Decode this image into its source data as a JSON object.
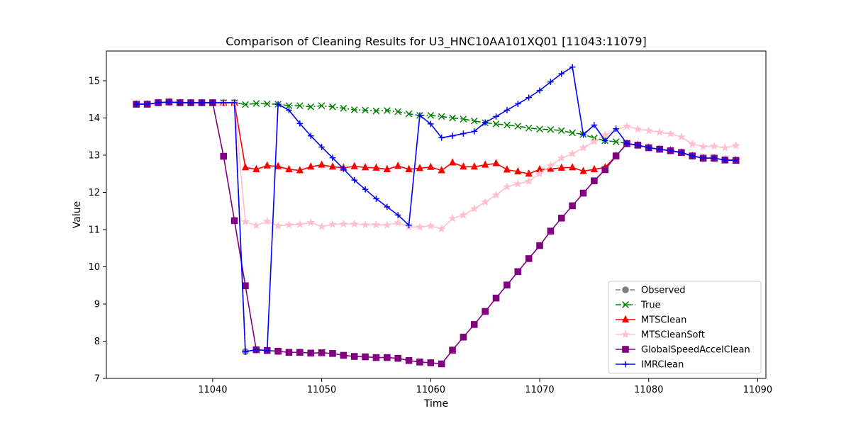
{
  "chart_data": {
    "type": "line",
    "title": "Comparison of Cleaning Results for U3_HNC10AA101XQ01 [11043:11079]",
    "xlabel": "Time",
    "ylabel": "Value",
    "xlim": [
      11030.25,
      11090.75
    ],
    "ylim": [
      7,
      15.8
    ],
    "xticks": [
      11040,
      11050,
      11060,
      11070,
      11080,
      11090
    ],
    "yticks": [
      7,
      8,
      9,
      10,
      11,
      12,
      13,
      14,
      15
    ],
    "grid": false,
    "legend_position": "lower-right",
    "series": [
      {
        "name": "Observed",
        "color": "#808080",
        "style": "dashed",
        "marker": "circle",
        "x": [
          11033,
          11034,
          11035,
          11036,
          11037,
          11038,
          11039,
          11040,
          11041,
          11042,
          11043
        ],
        "y": [
          14.37,
          14.37,
          14.41,
          14.43,
          14.41,
          14.41,
          14.41,
          14.41,
          14.41,
          14.41,
          7.72
        ]
      },
      {
        "name": "True",
        "color": "#008000",
        "style": "dashdot",
        "marker": "x",
        "x": [
          11033,
          11034,
          11035,
          11036,
          11037,
          11038,
          11039,
          11040,
          11041,
          11042,
          11043,
          11044,
          11045,
          11046,
          11047,
          11048,
          11049,
          11050,
          11051,
          11052,
          11053,
          11054,
          11055,
          11056,
          11057,
          11058,
          11059,
          11060,
          11061,
          11062,
          11063,
          11064,
          11065,
          11066,
          11067,
          11068,
          11069,
          11070,
          11071,
          11072,
          11073,
          11074,
          11075,
          11076,
          11077,
          11078
        ],
        "y": [
          14.37,
          14.37,
          14.41,
          14.43,
          14.41,
          14.41,
          14.41,
          14.41,
          14.41,
          14.41,
          14.36,
          14.39,
          14.38,
          14.37,
          14.33,
          14.33,
          14.3,
          14.33,
          14.3,
          14.26,
          14.22,
          14.21,
          14.19,
          14.2,
          14.17,
          14.11,
          14.07,
          14.07,
          14.04,
          14.0,
          13.97,
          13.92,
          13.87,
          13.84,
          13.81,
          13.78,
          13.73,
          13.7,
          13.69,
          13.66,
          13.6,
          13.56,
          13.46,
          13.39,
          13.36,
          13.32
        ]
      },
      {
        "name": "MTSClean",
        "color": "#ff0000",
        "style": "solid",
        "marker": "triangle",
        "x": [
          11033,
          11034,
          11035,
          11036,
          11037,
          11038,
          11039,
          11040,
          11041,
          11042,
          11043,
          11044,
          11045,
          11046,
          11047,
          11048,
          11049,
          11050,
          11051,
          11052,
          11053,
          11054,
          11055,
          11056,
          11057,
          11058,
          11059,
          11060,
          11061,
          11062,
          11063,
          11064,
          11065,
          11066,
          11067,
          11068,
          11069,
          11070,
          11071,
          11072,
          11073,
          11074,
          11075,
          11076,
          11077,
          11078,
          11079,
          11080,
          11081,
          11082,
          11083,
          11084,
          11085,
          11086,
          11087,
          11088
        ],
        "y": [
          14.37,
          14.37,
          14.41,
          14.43,
          14.41,
          14.41,
          14.41,
          14.41,
          14.41,
          14.41,
          12.67,
          12.62,
          12.72,
          12.7,
          12.62,
          12.59,
          12.69,
          12.74,
          12.69,
          12.66,
          12.7,
          12.67,
          12.66,
          12.62,
          12.71,
          12.62,
          12.65,
          12.68,
          12.59,
          12.8,
          12.69,
          12.69,
          12.74,
          12.78,
          12.61,
          12.56,
          12.5,
          12.62,
          12.63,
          12.66,
          12.67,
          12.57,
          12.62,
          12.67,
          12.98,
          13.31,
          13.27,
          13.2,
          13.16,
          13.12,
          13.07,
          12.98,
          12.92,
          12.92,
          12.87,
          12.86
        ]
      },
      {
        "name": "MTSCleanSoft",
        "color": "#ffc0cb",
        "style": "solid",
        "marker": "star",
        "x": [
          11033,
          11034,
          11035,
          11036,
          11037,
          11038,
          11039,
          11040,
          11041,
          11042,
          11043,
          11044,
          11045,
          11046,
          11047,
          11048,
          11049,
          11050,
          11051,
          11052,
          11053,
          11054,
          11055,
          11056,
          11057,
          11058,
          11059,
          11060,
          11061,
          11062,
          11063,
          11064,
          11065,
          11066,
          11067,
          11068,
          11069,
          11070,
          11071,
          11072,
          11073,
          11074,
          11075,
          11076,
          11077,
          11078,
          11079,
          11080,
          11081,
          11082,
          11083,
          11084,
          11085,
          11086,
          11087,
          11088
        ],
        "y": [
          14.37,
          14.37,
          14.41,
          14.43,
          14.41,
          14.41,
          14.41,
          14.41,
          14.41,
          14.41,
          11.21,
          11.11,
          11.22,
          11.1,
          11.13,
          11.14,
          11.19,
          11.08,
          11.14,
          11.15,
          11.15,
          11.13,
          11.13,
          11.12,
          11.18,
          11.07,
          11.07,
          11.1,
          11.02,
          11.3,
          11.39,
          11.56,
          11.74,
          11.93,
          12.15,
          12.23,
          12.3,
          12.5,
          12.72,
          12.92,
          13.04,
          13.2,
          13.37,
          13.54,
          13.69,
          13.78,
          13.7,
          13.66,
          13.62,
          13.57,
          13.49,
          13.3,
          13.23,
          13.24,
          13.2,
          13.26
        ]
      },
      {
        "name": "GlobalSpeedAccelClean",
        "color": "#800080",
        "style": "solid",
        "marker": "square",
        "x": [
          11033,
          11034,
          11035,
          11036,
          11037,
          11038,
          11039,
          11040,
          11041,
          11042,
          11043,
          11044,
          11045,
          11046,
          11047,
          11048,
          11049,
          11050,
          11051,
          11052,
          11053,
          11054,
          11055,
          11056,
          11057,
          11058,
          11059,
          11060,
          11061,
          11062,
          11063,
          11064,
          11065,
          11066,
          11067,
          11068,
          11069,
          11070,
          11071,
          11072,
          11073,
          11074,
          11075,
          11076,
          11077,
          11078,
          11079,
          11080,
          11081,
          11082,
          11083,
          11084,
          11085,
          11086,
          11087,
          11088
        ],
        "y": [
          14.37,
          14.37,
          14.41,
          14.43,
          14.41,
          14.41,
          14.41,
          14.41,
          12.97,
          11.24,
          9.49,
          7.77,
          7.75,
          7.73,
          7.7,
          7.7,
          7.68,
          7.69,
          7.67,
          7.62,
          7.59,
          7.58,
          7.56,
          7.56,
          7.54,
          7.48,
          7.44,
          7.42,
          7.39,
          7.76,
          8.11,
          8.45,
          8.8,
          9.16,
          9.51,
          9.87,
          10.22,
          10.57,
          10.96,
          11.31,
          11.64,
          11.98,
          12.31,
          12.61,
          12.98,
          13.31,
          13.27,
          13.2,
          13.16,
          13.12,
          13.07,
          12.98,
          12.92,
          12.92,
          12.87,
          12.86
        ]
      },
      {
        "name": "IMRClean",
        "color": "#0000ff",
        "style": "solid",
        "marker": "plus",
        "x": [
          11033,
          11034,
          11035,
          11036,
          11037,
          11038,
          11039,
          11040,
          11041,
          11042,
          11043,
          11044,
          11045,
          11046,
          11047,
          11048,
          11049,
          11050,
          11051,
          11052,
          11053,
          11054,
          11055,
          11056,
          11057,
          11058,
          11059,
          11060,
          11061,
          11062,
          11063,
          11064,
          11065,
          11066,
          11067,
          11068,
          11069,
          11070,
          11071,
          11072,
          11073,
          11074,
          11075,
          11076,
          11077,
          11078,
          11079,
          11080,
          11081,
          11082,
          11083,
          11084,
          11085,
          11086,
          11087,
          11088
        ],
        "y": [
          14.37,
          14.37,
          14.41,
          14.43,
          14.41,
          14.41,
          14.41,
          14.41,
          14.41,
          14.41,
          7.72,
          7.77,
          7.75,
          14.37,
          14.21,
          13.85,
          13.52,
          13.22,
          12.93,
          12.63,
          12.33,
          12.08,
          11.83,
          11.61,
          11.39,
          11.12,
          14.07,
          13.84,
          13.47,
          13.52,
          13.58,
          13.64,
          13.88,
          14.04,
          14.21,
          14.38,
          14.55,
          14.74,
          14.97,
          15.19,
          15.37,
          13.55,
          13.81,
          13.39,
          13.71,
          13.31,
          13.27,
          13.2,
          13.16,
          13.12,
          13.07,
          12.98,
          12.92,
          12.92,
          12.87,
          12.86
        ]
      }
    ]
  }
}
